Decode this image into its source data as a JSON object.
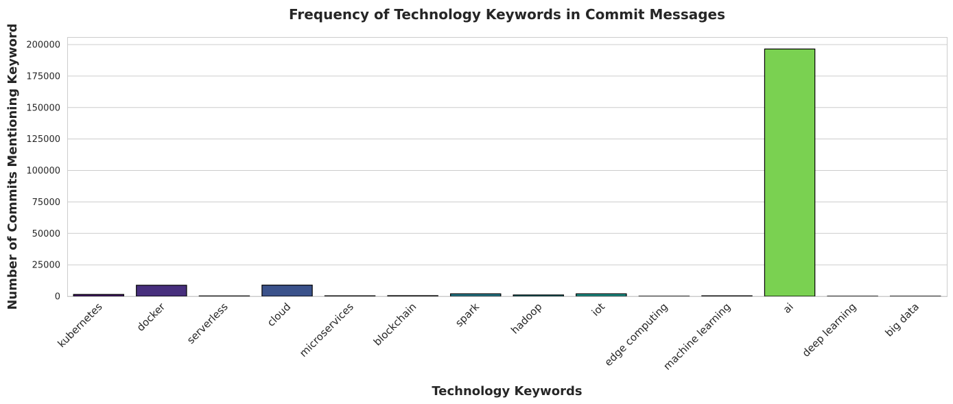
{
  "chart_data": {
    "type": "bar",
    "title": "Frequency of Technology Keywords in Commit Messages",
    "xlabel": "Technology Keywords",
    "ylabel": "Number of Commits Mentioning Keyword",
    "categories": [
      "kubernetes",
      "docker",
      "serverless",
      "cloud",
      "microservices",
      "blockchain",
      "spark",
      "hadoop",
      "iot",
      "edge computing",
      "machine learning",
      "ai",
      "deep learning",
      "big data"
    ],
    "values": [
      1500,
      8800,
      300,
      8900,
      400,
      500,
      2000,
      1100,
      2000,
      100,
      400,
      196500,
      100,
      100
    ],
    "colors": [
      "#481a6c",
      "#472f7d",
      "#414487",
      "#3b528b",
      "#34618d",
      "#2d708e",
      "#287d8e",
      "#23898e",
      "#1f958b",
      "#1fa187",
      "#2db27d",
      "#7ad151",
      "#bddf26",
      "#fde725"
    ],
    "ylim": [
      0,
      206000
    ],
    "yticks": [
      0,
      25000,
      50000,
      75000,
      100000,
      125000,
      150000,
      175000,
      200000
    ],
    "grid": true,
    "xtick_rotation": -45
  }
}
